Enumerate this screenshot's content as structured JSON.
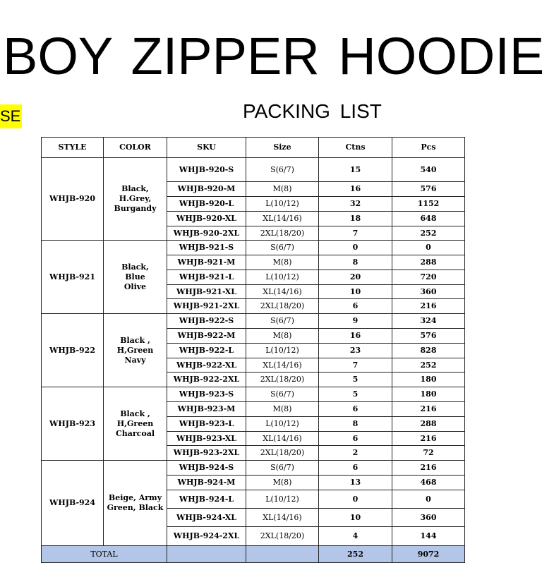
{
  "title": "BOY  ZIPPER  HOODIE",
  "side_label": "SE",
  "subtitle": "PACKING  LIST",
  "colors": {
    "highlight": "#ffff00",
    "total_row": "#b4c6e7"
  },
  "columns": [
    "STYLE",
    "COLOR",
    "SKU",
    "Size",
    "Ctns",
    "Pcs"
  ],
  "groups": [
    {
      "style": "WHJB-920",
      "color": "Black,\nH.Grey,\nBurgandy",
      "rows": [
        {
          "sku": "WHJB-920-S",
          "size": "S(6/7)",
          "ctns": "15",
          "pcs": "540"
        },
        {
          "sku": "WHJB-920-M",
          "size": "M(8)",
          "ctns": "16",
          "pcs": "576"
        },
        {
          "sku": "WHJB-920-L",
          "size": "L(10/12)",
          "ctns": "32",
          "pcs": "1152"
        },
        {
          "sku": "WHJB-920-XL",
          "size": "XL(14/16)",
          "ctns": "18",
          "pcs": "648"
        },
        {
          "sku": "WHJB-920-2XL",
          "size": "2XL(18/20)",
          "ctns": "7",
          "pcs": "252"
        }
      ]
    },
    {
      "style": "WHJB-921",
      "color": "Black,\nBlue\nOlive",
      "rows": [
        {
          "sku": "WHJB-921-S",
          "size": "S(6/7)",
          "ctns": "0",
          "pcs": "0"
        },
        {
          "sku": "WHJB-921-M",
          "size": "M(8)",
          "ctns": "8",
          "pcs": "288"
        },
        {
          "sku": "WHJB-921-L",
          "size": "L(10/12)",
          "ctns": "20",
          "pcs": "720"
        },
        {
          "sku": "WHJB-921-XL",
          "size": "XL(14/16)",
          "ctns": "10",
          "pcs": "360"
        },
        {
          "sku": "WHJB-921-2XL",
          "size": "2XL(18/20)",
          "ctns": "6",
          "pcs": "216"
        }
      ]
    },
    {
      "style": "WHJB-922",
      "color": "Black ,\nH,Green\nNavy",
      "rows": [
        {
          "sku": "WHJB-922-S",
          "size": "S(6/7)",
          "ctns": "9",
          "pcs": "324"
        },
        {
          "sku": "WHJB-922-M",
          "size": "M(8)",
          "ctns": "16",
          "pcs": "576"
        },
        {
          "sku": "WHJB-922-L",
          "size": "L(10/12)",
          "ctns": "23",
          "pcs": "828"
        },
        {
          "sku": "WHJB-922-XL",
          "size": "XL(14/16)",
          "ctns": "7",
          "pcs": "252"
        },
        {
          "sku": "WHJB-922-2XL",
          "size": "2XL(18/20)",
          "ctns": "5",
          "pcs": "180"
        }
      ]
    },
    {
      "style": "WHJB-923",
      "color": "Black ,\nH,Green\nCharcoal",
      "rows": [
        {
          "sku": "WHJB-923-S",
          "size": "S(6/7)",
          "ctns": "5",
          "pcs": "180"
        },
        {
          "sku": "WHJB-923-M",
          "size": "M(8)",
          "ctns": "6",
          "pcs": "216"
        },
        {
          "sku": "WHJB-923-L",
          "size": "L(10/12)",
          "ctns": "8",
          "pcs": "288"
        },
        {
          "sku": "WHJB-923-XL",
          "size": "XL(14/16)",
          "ctns": "6",
          "pcs": "216"
        },
        {
          "sku": "WHJB-923-2XL",
          "size": "2XL(18/20)",
          "ctns": "2",
          "pcs": "72"
        }
      ]
    },
    {
      "style": "WHJB-924",
      "color": "Beige, Army\nGreen, Black",
      "rows": [
        {
          "sku": "WHJB-924-S",
          "size": "S(6/7)",
          "ctns": "6",
          "pcs": "216"
        },
        {
          "sku": "WHJB-924-M",
          "size": "M(8)",
          "ctns": "13",
          "pcs": "468"
        },
        {
          "sku": "WHJB-924-L",
          "size": "L(10/12)",
          "ctns": "0",
          "pcs": "0"
        },
        {
          "sku": "WHJB-924-XL",
          "size": "XL(14/16)",
          "ctns": "10",
          "pcs": "360"
        },
        {
          "sku": "WHJB-924-2XL",
          "size": "2XL(18/20)",
          "ctns": "4",
          "pcs": "144"
        }
      ]
    }
  ],
  "total": {
    "label": "TOTAL",
    "ctns": "252",
    "pcs": "9072"
  }
}
